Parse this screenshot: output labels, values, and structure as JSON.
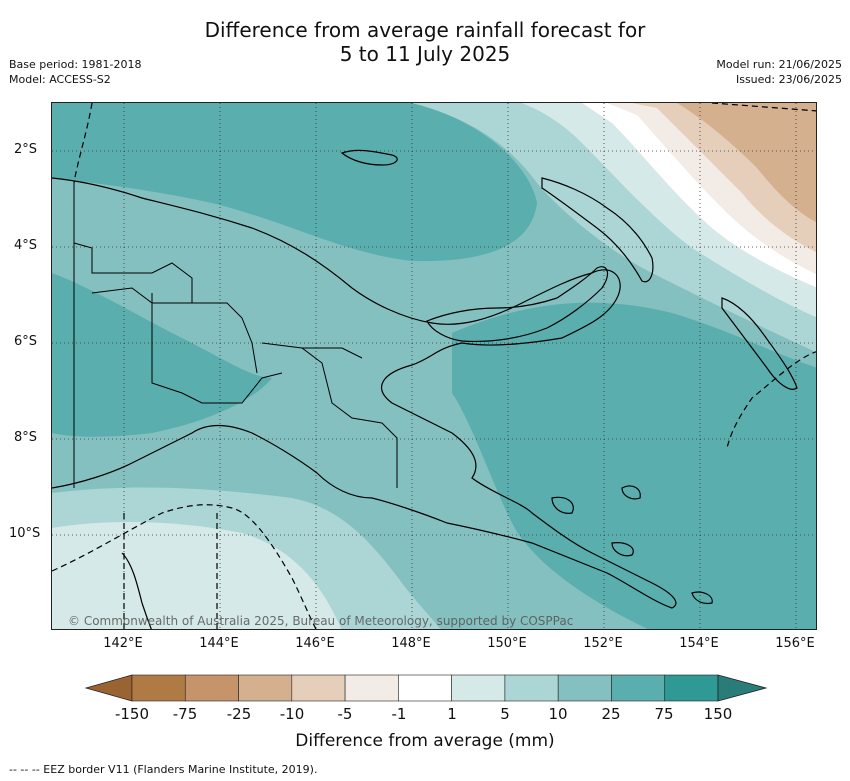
{
  "title": {
    "line1": "Difference from average rainfall forecast for",
    "line2": "5 to 11 July 2025"
  },
  "meta": {
    "base_period": "Base period: 1981-2018",
    "model": "Model: ACCESS-S2",
    "model_run": "Model run: 21/06/2025",
    "issued": "Issued: 23/06/2025"
  },
  "axes": {
    "lat_labels": [
      "2°S",
      "4°S",
      "6°S",
      "8°S",
      "10°S"
    ],
    "lon_labels": [
      "142°E",
      "144°E",
      "146°E",
      "148°E",
      "150°E",
      "152°E",
      "154°E",
      "156°E"
    ]
  },
  "copyright": "© Commonwealth of Australia 2025, Bureau of Meteorology, supported by COSPPac",
  "colorbar": {
    "title": "Difference from average (mm)",
    "ticks": [
      "-150",
      "-75",
      "-25",
      "-10",
      "-5",
      "-1",
      "1",
      "5",
      "10",
      "25",
      "75",
      "150"
    ],
    "colors": [
      "#b07a45",
      "#c5946a",
      "#d4b08f",
      "#e6cfba",
      "#f2ebe6",
      "#ffffff",
      "#d5e9e8",
      "#acd6d5",
      "#84c0bf",
      "#5aaeae",
      "#2f9995"
    ],
    "under_color": "#9a6332",
    "over_color": "#2a7c79"
  },
  "footnote": "--  --  -- EEZ border V11 (Flanders Marine Institute, 2019)."
}
